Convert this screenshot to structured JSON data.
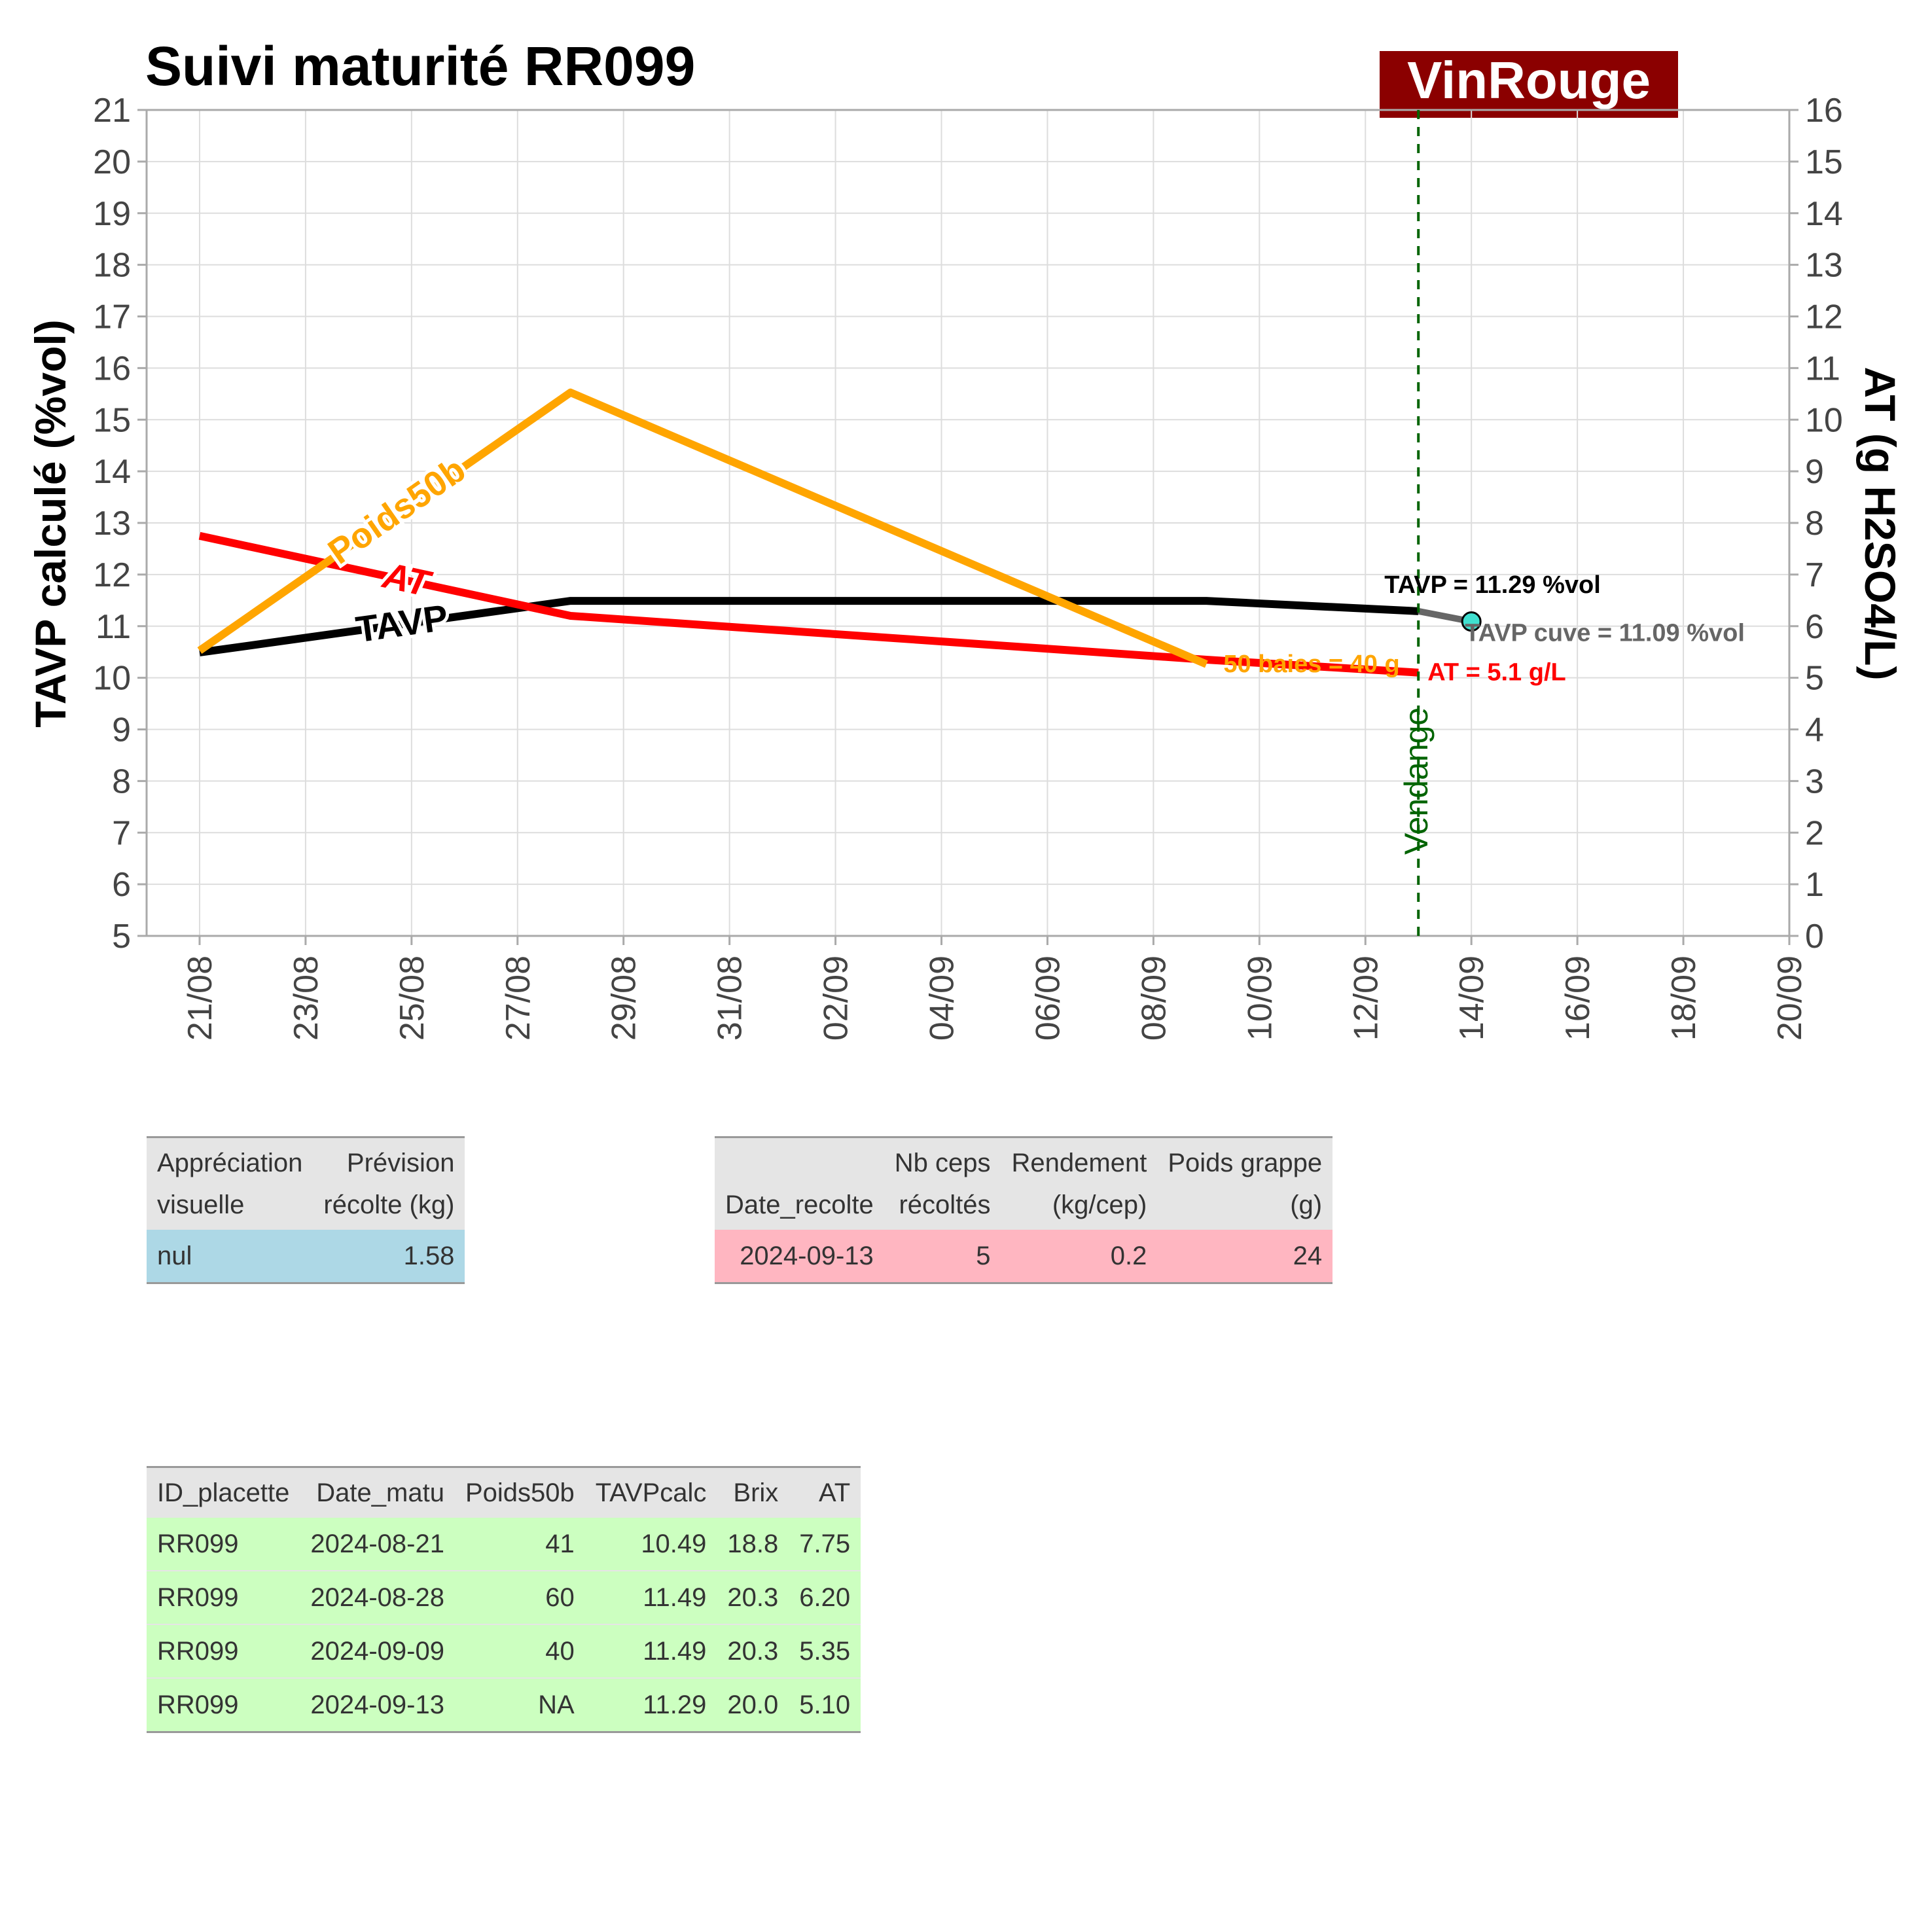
{
  "title": "Suivi maturité  RR099",
  "brand": {
    "label": "VinRouge",
    "bg": "#8b0000"
  },
  "chart_data": {
    "type": "line",
    "ylabel_left": "TAVP calculé (%vol)",
    "ylabel_right": "AT (g H2SO4/L)",
    "ylim_left": [
      5,
      21
    ],
    "ylim_right": [
      0,
      16
    ],
    "left_ticks": [
      "5",
      "6",
      "7",
      "8",
      "9",
      "10",
      "11",
      "12",
      "13",
      "14",
      "15",
      "16",
      "17",
      "18",
      "19",
      "20",
      "21"
    ],
    "right_ticks": [
      "0",
      "1",
      "2",
      "3",
      "4",
      "5",
      "6",
      "7",
      "8",
      "9",
      "10",
      "11",
      "12",
      "13",
      "14",
      "15",
      "16"
    ],
    "x_ticks": [
      "21/08",
      "23/08",
      "25/08",
      "27/08",
      "29/08",
      "31/08",
      "02/09",
      "04/09",
      "06/09",
      "08/09",
      "10/09",
      "12/09",
      "14/09",
      "16/09",
      "18/09",
      "20/09"
    ],
    "x_tick_dates": [
      "2024-08-21",
      "2024-08-23",
      "2024-08-25",
      "2024-08-27",
      "2024-08-29",
      "2024-08-31",
      "2024-09-02",
      "2024-09-04",
      "2024-09-06",
      "2024-09-08",
      "2024-09-10",
      "2024-09-12",
      "2024-09-14",
      "2024-09-16",
      "2024-09-18",
      "2024-09-20"
    ],
    "xlim": [
      "2024-08-20",
      "2024-09-20"
    ],
    "grid": true,
    "series": [
      {
        "name": "TAVP",
        "axis": "left",
        "color": "#000000",
        "points": [
          [
            "2024-08-21",
            10.49
          ],
          [
            "2024-08-28",
            11.49
          ],
          [
            "2024-09-09",
            11.49
          ],
          [
            "2024-09-13",
            11.29
          ]
        ]
      },
      {
        "name": "AT",
        "axis": "right",
        "color": "#ff0000",
        "points": [
          [
            "2024-08-21",
            7.75
          ],
          [
            "2024-08-28",
            6.2
          ],
          [
            "2024-09-09",
            5.35
          ],
          [
            "2024-09-13",
            5.1
          ]
        ]
      },
      {
        "name": "Poids50b",
        "axis": "left",
        "color": "#ffa500",
        "points": [
          [
            "2024-08-21",
            41
          ],
          [
            "2024-08-28",
            60
          ],
          [
            "2024-09-09",
            40
          ]
        ]
      }
    ],
    "tavp_cuve": {
      "start": [
        "2024-09-13",
        11.29
      ],
      "point": [
        "2024-09-14",
        11.09
      ],
      "color": "#666666",
      "marker": "#40e0d0"
    },
    "vendange": {
      "date": "2024-09-13",
      "label": "Vendange",
      "color": "#006400"
    },
    "annotations": {
      "tavp": "TAVP = 11.29 %vol",
      "cuve": "TAVP cuve = 11.09 %vol",
      "at": "AT = 5.1 g/L",
      "poids": "50 baies = 40 g"
    }
  },
  "table_appreciation": {
    "headers": [
      [
        "Appréciation",
        "visuelle"
      ],
      [
        "Prévision",
        "récolte (kg)"
      ]
    ],
    "row": [
      "nul",
      "1.58"
    ],
    "row_color": "#add8e6"
  },
  "table_recolte": {
    "headers": [
      [
        "",
        "Date_recolte"
      ],
      [
        "Nb ceps",
        "récoltés"
      ],
      [
        "Rendement",
        "(kg/cep)"
      ],
      [
        "Poids grappe",
        "(g)"
      ]
    ],
    "row": [
      "2024-09-13",
      "5",
      "0.2",
      "24"
    ],
    "row_color": "#ffb6c1"
  },
  "table_matu": {
    "headers": [
      "ID_placette",
      "Date_matu",
      "Poids50b",
      "TAVPcalc",
      "Brix",
      "AT"
    ],
    "rows": [
      [
        "RR099",
        "2024-08-21",
        "41",
        "10.49",
        "18.8",
        "7.75"
      ],
      [
        "RR099",
        "2024-08-28",
        "60",
        "11.49",
        "20.3",
        "6.20"
      ],
      [
        "RR099",
        "2024-09-09",
        "40",
        "11.49",
        "20.3",
        "5.35"
      ],
      [
        "RR099",
        "2024-09-13",
        "NA",
        "11.29",
        "20.0",
        "5.10"
      ]
    ],
    "row_color": "#ccffc0"
  }
}
